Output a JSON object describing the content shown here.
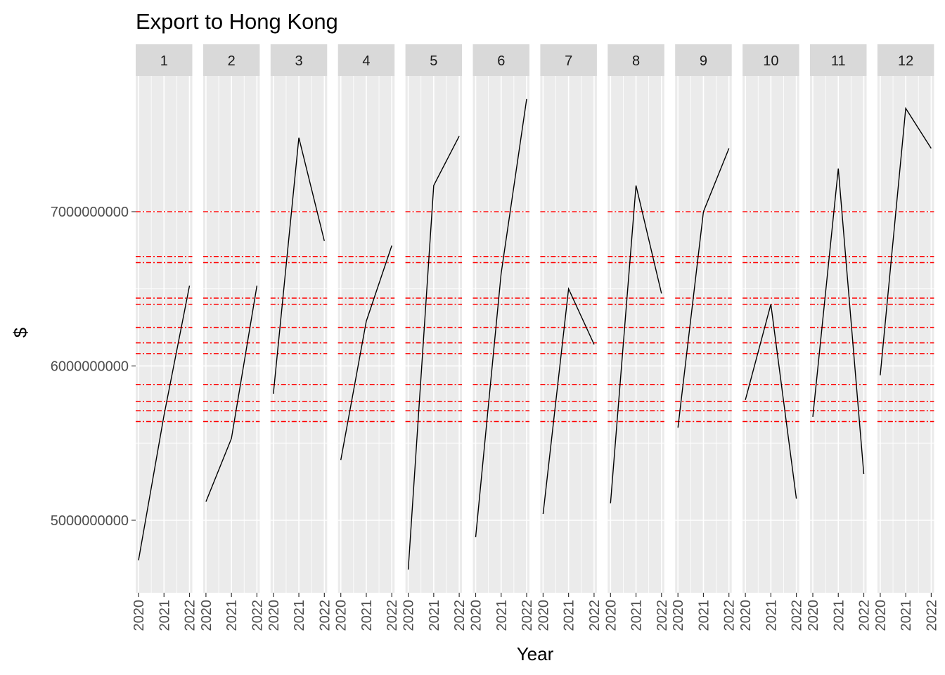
{
  "chart_data": {
    "type": "line",
    "title": "Export to Hong Kong",
    "xlabel": "Year",
    "ylabel": "$",
    "facets": [
      "1",
      "2",
      "3",
      "4",
      "5",
      "6",
      "7",
      "8",
      "9",
      "10",
      "11",
      "12"
    ],
    "x": [
      2020,
      2021,
      2022
    ],
    "x_tick_labels": [
      "2020",
      "2021",
      "2022"
    ],
    "y_ticks": [
      5000000000,
      6000000000,
      7000000000
    ],
    "y_tick_labels": [
      "5000000000",
      "6000000000",
      "7000000000"
    ],
    "ylim": [
      4530000000,
      7880000000
    ],
    "series": [
      {
        "facet": "1",
        "values": [
          4740000000,
          5680000000,
          6520000000
        ]
      },
      {
        "facet": "2",
        "values": [
          5120000000,
          5530000000,
          6520000000
        ]
      },
      {
        "facet": "3",
        "values": [
          5820000000,
          7480000000,
          6810000000
        ]
      },
      {
        "facet": "4",
        "values": [
          5390000000,
          6290000000,
          6780000000
        ]
      },
      {
        "facet": "5",
        "values": [
          4680000000,
          7170000000,
          7490000000
        ]
      },
      {
        "facet": "6",
        "values": [
          4890000000,
          6600000000,
          7730000000
        ]
      },
      {
        "facet": "7",
        "values": [
          5040000000,
          6500000000,
          6140000000
        ]
      },
      {
        "facet": "8",
        "values": [
          5110000000,
          7170000000,
          6470000000
        ]
      },
      {
        "facet": "9",
        "values": [
          5600000000,
          7000000000,
          7410000000
        ]
      },
      {
        "facet": "10",
        "values": [
          5780000000,
          6400000000,
          5140000000
        ]
      },
      {
        "facet": "11",
        "values": [
          5670000000,
          7280000000,
          5300000000
        ]
      },
      {
        "facet": "12",
        "values": [
          5940000000,
          7670000000,
          7410000000
        ]
      }
    ],
    "reference_lines": [
      5640000000,
      5710000000,
      5770000000,
      5880000000,
      6080000000,
      6150000000,
      6250000000,
      6400000000,
      6440000000,
      6670000000,
      6710000000,
      7000000000
    ],
    "colors": {
      "panel_background": "#ebebeb",
      "grid": "#ffffff",
      "strip_background": "#d9d9d9",
      "line": "#000000",
      "reference_line": "#ff0000"
    },
    "grid": true,
    "legend": "none"
  }
}
